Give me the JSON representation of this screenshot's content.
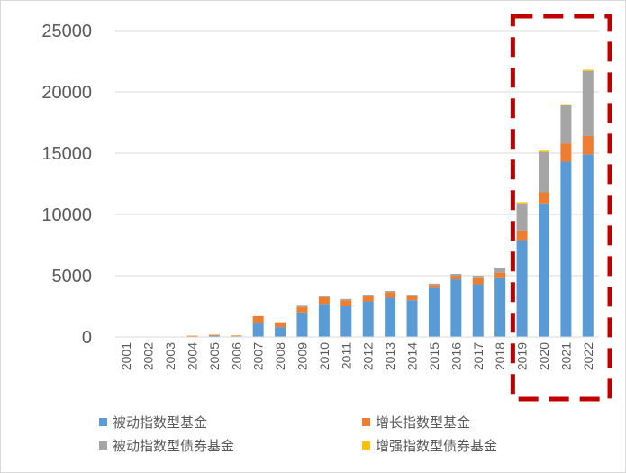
{
  "chart_data": {
    "type": "bar",
    "stacked": true,
    "categories": [
      "2001",
      "2002",
      "2003",
      "2004",
      "2005",
      "2006",
      "2007",
      "2008",
      "2009",
      "2010",
      "2011",
      "2012",
      "2013",
      "2014",
      "2015",
      "2016",
      "2017",
      "2018",
      "2019",
      "2020",
      "2021",
      "2022"
    ],
    "series": [
      {
        "name": "被动指数型基金",
        "color": "#5b9bd5",
        "values": [
          0,
          0,
          0,
          50,
          100,
          60,
          1100,
          800,
          2000,
          2700,
          2500,
          2900,
          3200,
          3000,
          4000,
          4700,
          4300,
          4800,
          7900,
          10900,
          14300,
          14900
        ]
      },
      {
        "name": "增长指数型基金",
        "color": "#ed7d31",
        "values": [
          0,
          0,
          0,
          50,
          80,
          60,
          600,
          400,
          450,
          550,
          500,
          450,
          450,
          400,
          250,
          300,
          500,
          450,
          800,
          900,
          1500,
          1500
        ]
      },
      {
        "name": "被动指数型债券基金",
        "color": "#a5a5a5",
        "values": [
          0,
          0,
          0,
          0,
          0,
          0,
          0,
          0,
          100,
          100,
          100,
          100,
          100,
          50,
          100,
          150,
          200,
          400,
          2200,
          3300,
          3100,
          5300
        ]
      },
      {
        "name": "增强指数型债券基金",
        "color": "#ffc000",
        "values": [
          0,
          0,
          0,
          0,
          0,
          0,
          0,
          0,
          0,
          0,
          0,
          0,
          0,
          0,
          0,
          0,
          0,
          0,
          100,
          100,
          100,
          100
        ]
      }
    ],
    "ylim": [
      0,
      25000
    ],
    "yticks": [
      "0",
      "5000",
      "10000",
      "15000",
      "20000",
      "25000"
    ],
    "grid": true,
    "legend_position": "bottom",
    "highlight": {
      "from": "2019",
      "to": "2022",
      "style": "dashed",
      "color": "#c00000"
    }
  }
}
